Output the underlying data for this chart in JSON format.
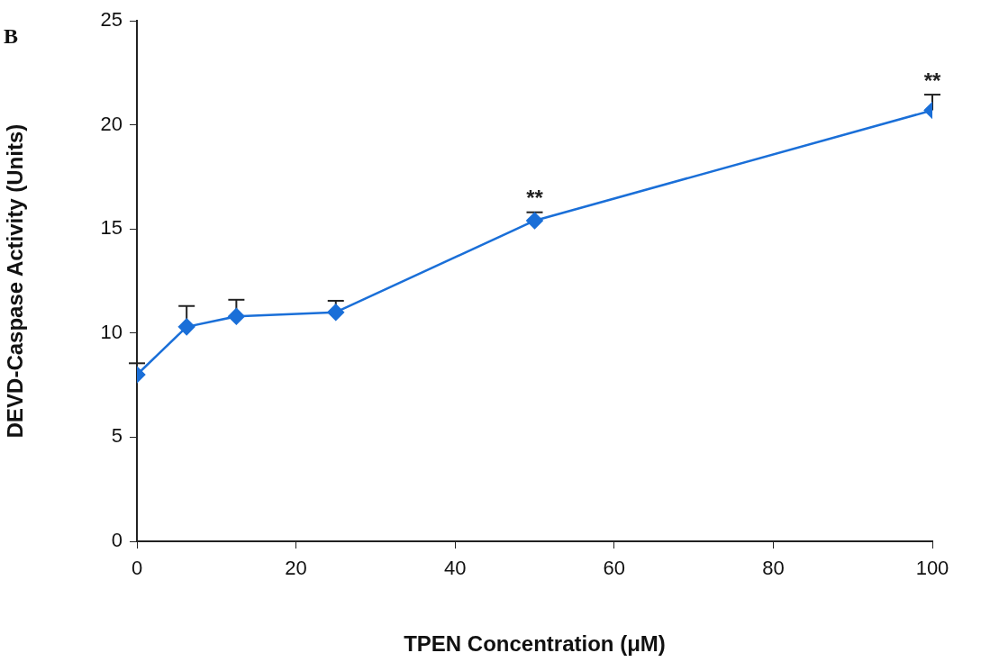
{
  "chart_data": {
    "type": "line",
    "xlabel": "TPEN Concentration (μM)",
    "ylabel": "DEVD-Caspase Activity (Units)",
    "x": [
      0,
      6.25,
      12.5,
      25,
      50,
      100
    ],
    "series": [
      {
        "color": "#1a6fd8",
        "values": [
          8.0,
          10.3,
          10.8,
          11.0,
          15.4,
          20.7
        ],
        "errors": [
          [
            8.0,
            8.55
          ],
          [
            10.3,
            11.3
          ],
          [
            10.8,
            11.6
          ],
          [
            11.0,
            11.55
          ],
          [
            15.4,
            15.8
          ],
          [
            20.7,
            21.45
          ]
        ]
      }
    ],
    "xlim": [
      0,
      100
    ],
    "xticks": [
      0,
      20,
      40,
      60,
      80,
      100
    ],
    "ylim": [
      0,
      25
    ],
    "yticks": [
      0,
      5,
      10,
      15,
      20,
      25
    ],
    "grid": false,
    "legend": false,
    "marker": "diamond",
    "line_style": "solid",
    "annotations": [
      "B",
      {
        "text": "**",
        "x": 50,
        "y": 15.8
      },
      {
        "text": "**",
        "x": 100,
        "y": 21.45
      }
    ]
  }
}
